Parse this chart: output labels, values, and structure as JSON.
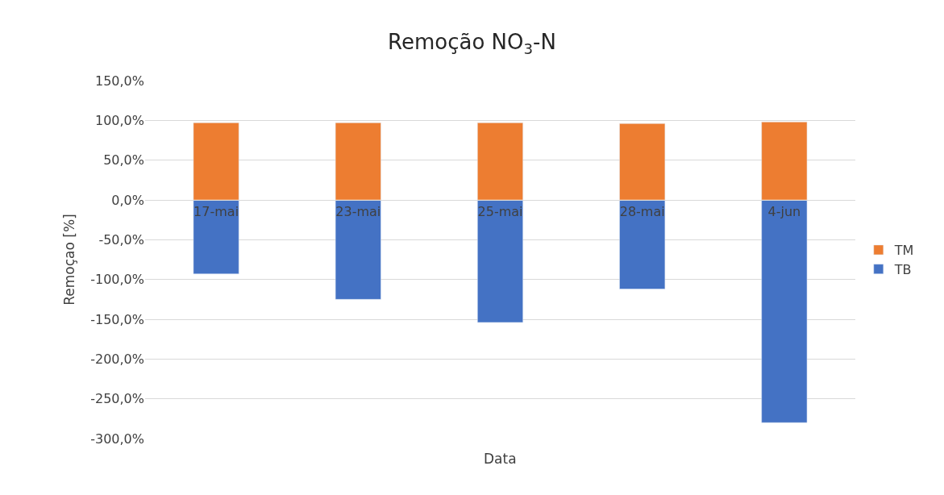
{
  "chart_data": {
    "type": "bar",
    "title": "Remoção NO$_{3}$-N",
    "xlabel": "Data",
    "ylabel": "Remoçao [%]",
    "categories": [
      "17-mai",
      "23-mai",
      "25-mai",
      "28-mai",
      "4-jun"
    ],
    "stacked": true,
    "series": [
      {
        "name": "TB",
        "color": "#4472c4",
        "values": [
          -93,
          -125,
          -154,
          -112,
          -280
        ]
      },
      {
        "name": "TM",
        "color": "#ed7d31",
        "values": [
          97,
          97,
          97,
          96,
          98
        ]
      }
    ],
    "ylim": [
      -300,
      150
    ],
    "yticks": [
      {
        "value": -300,
        "label": "-300,0%"
      },
      {
        "value": -250,
        "label": "-250,0%"
      },
      {
        "value": -200,
        "label": "-200,0%"
      },
      {
        "value": -150,
        "label": "-150,0%"
      },
      {
        "value": -100,
        "label": "-100,0%"
      },
      {
        "value": -50,
        "label": "-50,0%"
      },
      {
        "value": 0,
        "label": "0,0%"
      },
      {
        "value": 50,
        "label": "50,0%"
      },
      {
        "value": 100,
        "label": "100,0%"
      },
      {
        "value": 150,
        "label": "150,0%"
      }
    ],
    "grid": true,
    "legend": "right"
  }
}
